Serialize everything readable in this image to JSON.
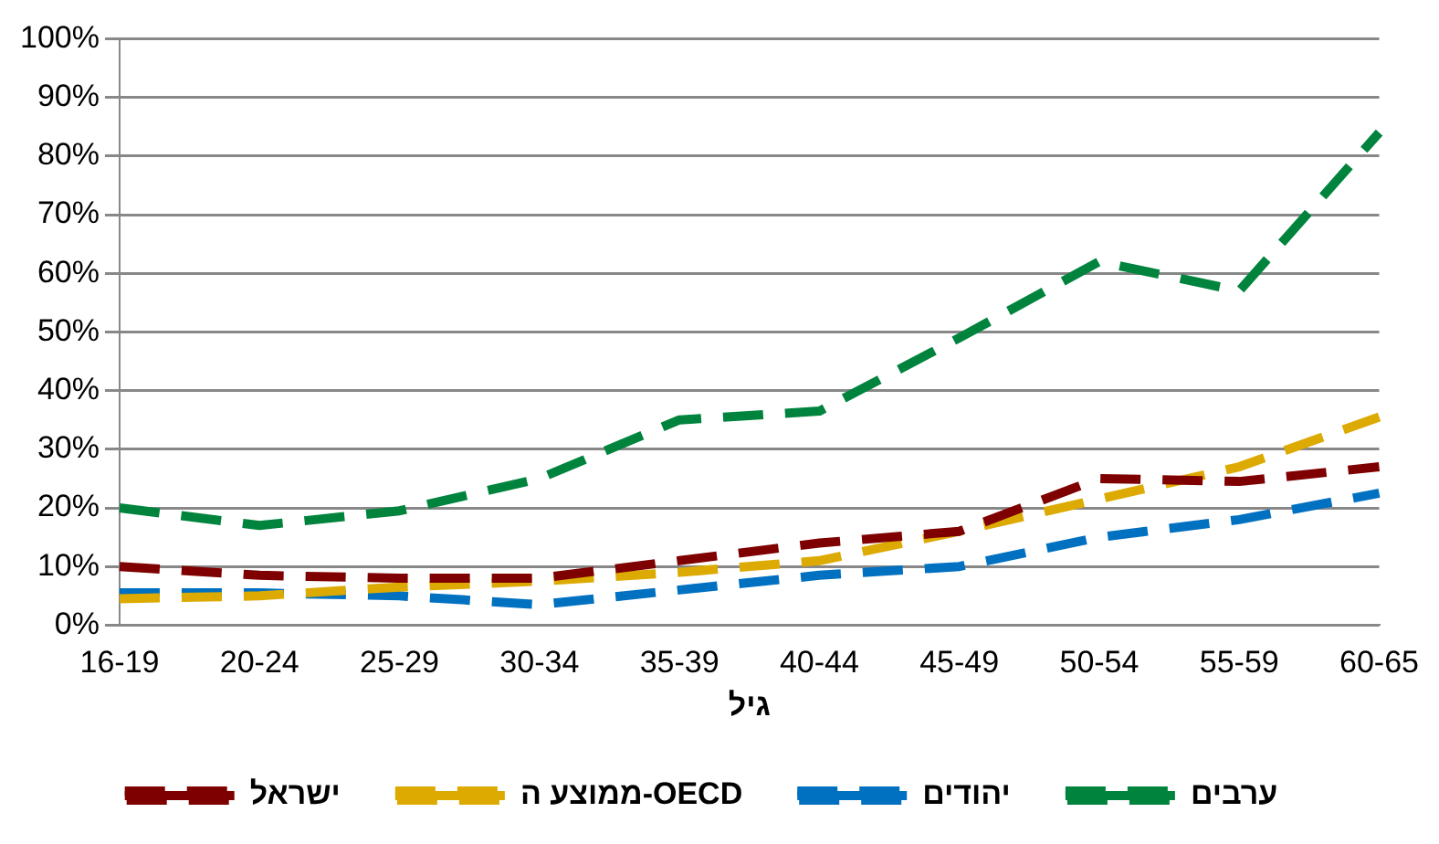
{
  "chart_data": {
    "type": "line",
    "xlabel": "גיל",
    "categories": [
      "16-19",
      "20-24",
      "25-29",
      "30-34",
      "35-39",
      "40-44",
      "45-49",
      "50-54",
      "55-59",
      "60-65"
    ],
    "series": [
      {
        "name": "ישראל",
        "color": "#7f0000",
        "values": [
          10,
          8.5,
          8,
          8,
          11,
          14,
          16,
          25,
          24.5,
          27
        ]
      },
      {
        "name": "ממוצע ה-OECD",
        "color": "#dcaa00",
        "values": [
          4.5,
          5,
          6.5,
          7.5,
          9,
          11,
          16,
          21.5,
          27,
          35.5
        ]
      },
      {
        "name": "יהודים",
        "color": "#0070c0",
        "values": [
          5.5,
          5.5,
          5,
          3.5,
          6,
          8.5,
          10,
          15,
          18,
          22.5
        ]
      },
      {
        "name": "ערבים",
        "color": "#00843d",
        "values": [
          20,
          17,
          19.5,
          25,
          35,
          36.5,
          49,
          62,
          57,
          84
        ]
      }
    ],
    "ylim": [
      0,
      100
    ],
    "yticks": [
      {
        "value": 0,
        "label": "0%"
      },
      {
        "value": 10,
        "label": "10%"
      },
      {
        "value": 20,
        "label": "20%"
      },
      {
        "value": 30,
        "label": "30%"
      },
      {
        "value": 40,
        "label": "40%"
      },
      {
        "value": 50,
        "label": "50%"
      },
      {
        "value": 60,
        "label": "60%"
      },
      {
        "value": 70,
        "label": "70%"
      },
      {
        "value": 80,
        "label": "80%"
      },
      {
        "value": 90,
        "label": "90%"
      },
      {
        "value": 100,
        "label": "100%"
      }
    ],
    "grid": "y",
    "legend": "bottom",
    "marker": "none",
    "line_style": "dashed"
  }
}
